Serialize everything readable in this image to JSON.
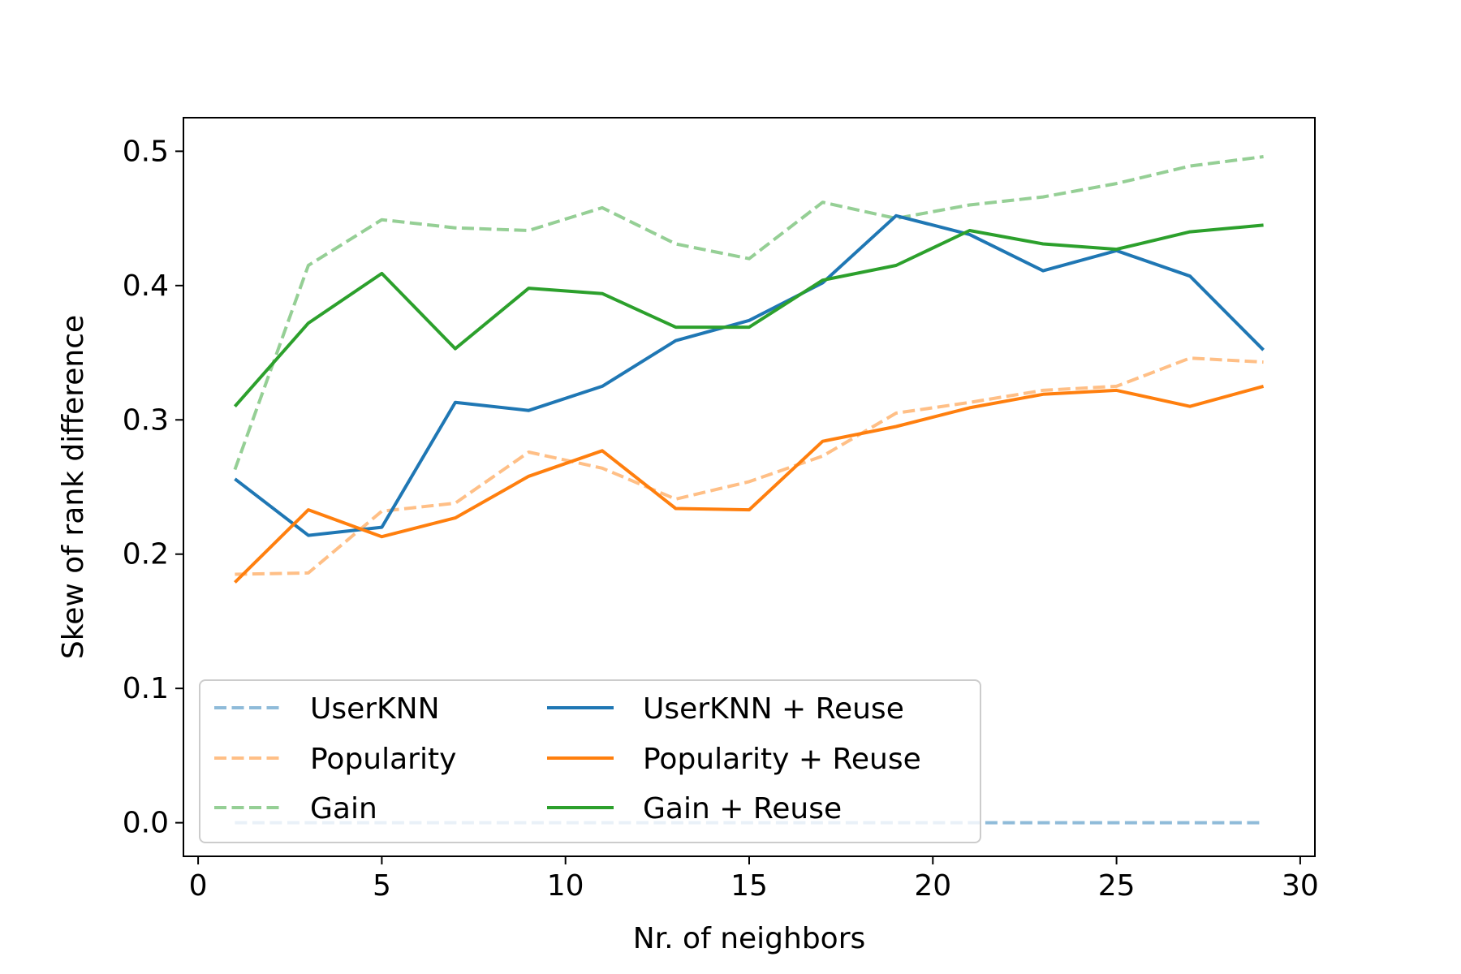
{
  "chart_data": {
    "type": "line",
    "title": "",
    "xlabel": "Nr. of neighbors",
    "ylabel": "Skew of rank difference",
    "xlim": [
      -0.4,
      30.4
    ],
    "ylim": [
      -0.025,
      0.525
    ],
    "xticks": [
      0,
      5,
      10,
      15,
      20,
      25,
      30
    ],
    "yticks": [
      0.0,
      0.1,
      0.2,
      0.3,
      0.4,
      0.5
    ],
    "xtick_labels": [
      "0",
      "5",
      "10",
      "15",
      "20",
      "25",
      "30"
    ],
    "ytick_labels": [
      "0.0",
      "0.1",
      "0.2",
      "0.3",
      "0.4",
      "0.5"
    ],
    "grid": false,
    "legend": "lower-left",
    "x": [
      1,
      3,
      5,
      7,
      9,
      11,
      13,
      15,
      17,
      19,
      21,
      23,
      25,
      27,
      29
    ],
    "series": [
      {
        "name": "UserKNN",
        "color": "#1f77b4",
        "style": "dashed",
        "faded": true,
        "values": [
          0,
          0,
          0,
          0,
          0,
          0,
          0,
          0,
          0,
          0,
          0,
          0,
          0,
          0,
          0
        ]
      },
      {
        "name": "Popularity",
        "color": "#ff7f0e",
        "style": "dashed",
        "faded": true,
        "values": [
          0.185,
          0.186,
          0.232,
          0.238,
          0.276,
          0.264,
          0.241,
          0.254,
          0.273,
          0.305,
          0.313,
          0.322,
          0.325,
          0.346,
          0.343
        ]
      },
      {
        "name": "Gain",
        "color": "#2ca02c",
        "style": "dashed",
        "faded": true,
        "values": [
          0.263,
          0.415,
          0.449,
          0.443,
          0.441,
          0.458,
          0.431,
          0.42,
          0.462,
          0.45,
          0.46,
          0.466,
          0.476,
          0.489,
          0.496
        ]
      },
      {
        "name": "UserKNN + Reuse",
        "color": "#1f77b4",
        "style": "solid",
        "faded": false,
        "values": [
          0.256,
          0.214,
          0.22,
          0.313,
          0.307,
          0.325,
          0.359,
          0.374,
          0.402,
          0.452,
          0.438,
          0.411,
          0.426,
          0.407,
          0.352
        ]
      },
      {
        "name": "Popularity + Reuse",
        "color": "#ff7f0e",
        "style": "solid",
        "faded": false,
        "values": [
          0.179,
          0.233,
          0.213,
          0.227,
          0.258,
          0.277,
          0.234,
          0.233,
          0.284,
          0.295,
          0.309,
          0.319,
          0.322,
          0.31,
          0.325
        ]
      },
      {
        "name": "Gain + Reuse",
        "color": "#2ca02c",
        "style": "solid",
        "faded": false,
        "values": [
          0.31,
          0.372,
          0.409,
          0.353,
          0.398,
          0.394,
          0.369,
          0.369,
          0.404,
          0.415,
          0.441,
          0.431,
          0.427,
          0.44,
          0.445
        ]
      }
    ]
  }
}
